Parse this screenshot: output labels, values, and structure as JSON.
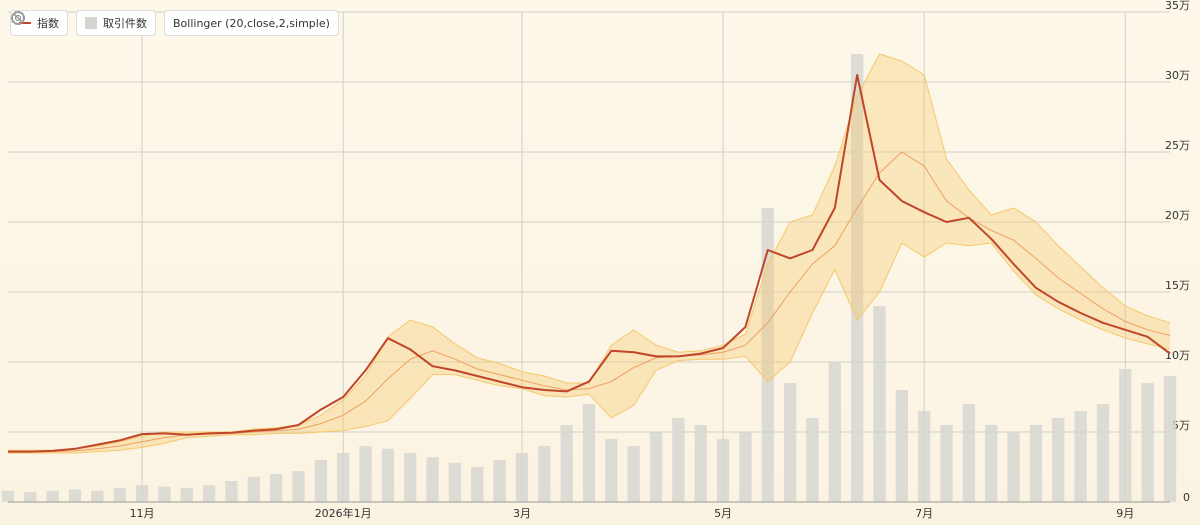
{
  "chart_data": {
    "type": "bollinger",
    "categories": [
      null,
      null,
      null,
      null,
      null,
      null,
      "11月",
      null,
      null,
      null,
      null,
      null,
      null,
      null,
      null,
      "2026年1月",
      null,
      null,
      null,
      null,
      null,
      null,
      null,
      "3月",
      null,
      null,
      null,
      null,
      null,
      null,
      null,
      null,
      "5月",
      null,
      null,
      null,
      null,
      null,
      null,
      null,
      null,
      "7月",
      null,
      null,
      null,
      null,
      null,
      null,
      null,
      null,
      "9月",
      null,
      null
    ],
    "series": [
      {
        "name": "指数",
        "color": "#c0462a",
        "kind": "line",
        "values": [
          36000,
          36000,
          36500,
          38000,
          41000,
          44000,
          48500,
          49000,
          48000,
          49000,
          49500,
          51000,
          52000,
          55000,
          66000,
          75000,
          94000,
          117000,
          109000,
          97000,
          94000,
          90000,
          86000,
          82000,
          80000,
          79000,
          86000,
          108000,
          107000,
          104000,
          104000,
          106000,
          110000,
          125000,
          180000,
          174000,
          180000,
          210000,
          305000,
          230000,
          215000,
          207000,
          200000,
          203000,
          188000,
          170000,
          153000,
          143000,
          135000,
          128000,
          123000,
          118000,
          106000
        ]
      },
      {
        "name": "取引件数",
        "color": "#d4d4d0",
        "kind": "bar",
        "values": [
          8000,
          7000,
          8000,
          9000,
          8000,
          10000,
          12000,
          11000,
          10000,
          12000,
          15000,
          18000,
          20000,
          22000,
          30000,
          35000,
          40000,
          38000,
          35000,
          32000,
          28000,
          25000,
          30000,
          35000,
          40000,
          55000,
          70000,
          45000,
          40000,
          50000,
          60000,
          55000,
          45000,
          50000,
          210000,
          85000,
          60000,
          100000,
          320000,
          140000,
          80000,
          65000,
          55000,
          70000,
          55000,
          50000,
          55000,
          60000,
          65000,
          70000,
          95000,
          85000,
          90000
        ]
      }
    ],
    "bollinger": {
      "name": "Bollinger (20,close,2,simple)",
      "color": "#f5c86a",
      "upper": [
        37000,
        37000,
        37000,
        38000,
        40000,
        43000,
        47000,
        50000,
        50000,
        50000,
        50000,
        52000,
        53000,
        55000,
        62000,
        73000,
        90000,
        118000,
        130000,
        125000,
        113000,
        103000,
        99000,
        93000,
        90000,
        85000,
        85000,
        112000,
        123000,
        112000,
        107000,
        108000,
        112000,
        120000,
        170000,
        200000,
        205000,
        240000,
        290000,
        320000,
        315000,
        305000,
        245000,
        223000,
        205000,
        210000,
        200000,
        183000,
        168000,
        153000,
        140000,
        133000,
        128000
      ],
      "middle": [
        36000,
        36000,
        36000,
        36500,
        38000,
        40000,
        43000,
        46000,
        48000,
        48500,
        49000,
        50000,
        51000,
        52000,
        56000,
        62000,
        72000,
        88000,
        102000,
        108000,
        102000,
        95000,
        91000,
        87000,
        83000,
        80000,
        81000,
        86000,
        96000,
        103000,
        104000,
        105000,
        107000,
        112000,
        128000,
        150000,
        170000,
        183000,
        210000,
        235000,
        250000,
        240000,
        215000,
        203000,
        194000,
        187000,
        174000,
        160000,
        149000,
        138000,
        129000,
        123000,
        119000
      ],
      "lower": [
        35000,
        35000,
        35000,
        35000,
        36000,
        37000,
        39000,
        42000,
        46000,
        47000,
        48000,
        48000,
        49000,
        49000,
        50000,
        51000,
        54000,
        58000,
        74000,
        91000,
        91000,
        87000,
        83000,
        81000,
        76000,
        75000,
        77000,
        60000,
        69000,
        94000,
        101000,
        102000,
        102000,
        104000,
        86000,
        100000,
        135000,
        166000,
        130000,
        150000,
        185000,
        175000,
        185000,
        183000,
        185000,
        165000,
        148000,
        138000,
        130000,
        123000,
        117000,
        113000,
        109000
      ]
    },
    "ylim": [
      0,
      350000
    ],
    "yticks": [
      0,
      {
        "value": 50000,
        "label": "5万"
      },
      {
        "value": 100000,
        "label": "10万"
      },
      {
        "value": 150000,
        "label": "15万"
      },
      {
        "value": 200000,
        "label": "20万"
      },
      {
        "value": 250000,
        "label": "25万"
      },
      {
        "value": 300000,
        "label": "30万"
      },
      {
        "value": 350000,
        "label": "35万"
      }
    ],
    "grid": true,
    "legend": "top-left"
  }
}
